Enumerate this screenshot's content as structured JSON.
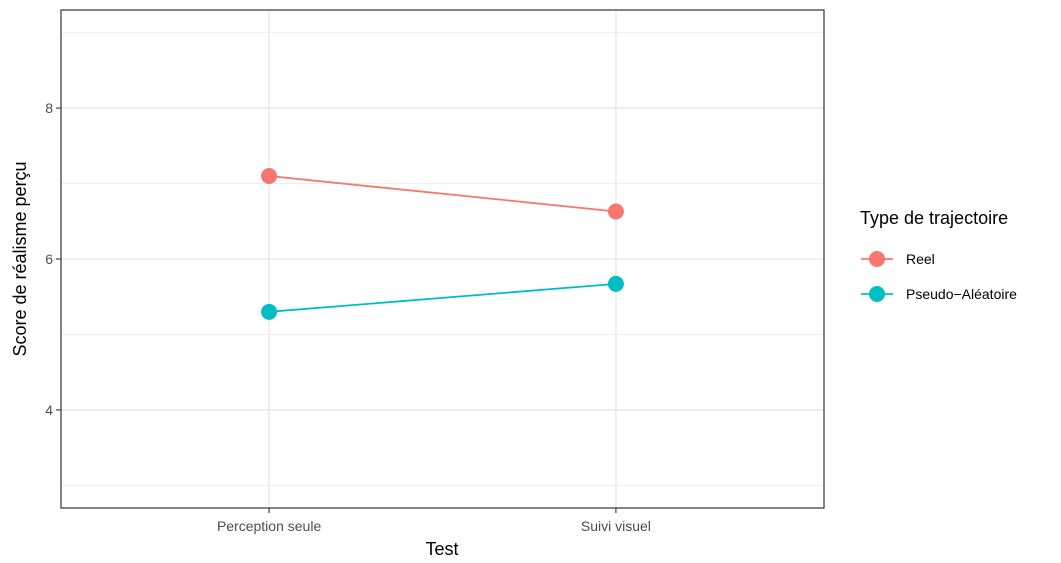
{
  "chart_data": {
    "type": "line",
    "categories": [
      "Perception seule",
      "Suivi visuel"
    ],
    "xlabel": "Test",
    "ylabel": "Score de réalisme perçu",
    "ylim": [
      2.7,
      9.3
    ],
    "yticks": [
      4,
      6,
      8
    ],
    "minor_yticks": [
      3,
      5,
      7,
      9
    ],
    "grid": true,
    "legend": {
      "title": "Type de trajectoire",
      "placement": "right"
    },
    "series": [
      {
        "name": "Reel",
        "color": "#F8766D",
        "values": [
          7.1,
          6.63
        ]
      },
      {
        "name": "Pseudo−Aléatoire",
        "color": "#00BFC4",
        "values": [
          5.3,
          5.67
        ]
      }
    ]
  }
}
